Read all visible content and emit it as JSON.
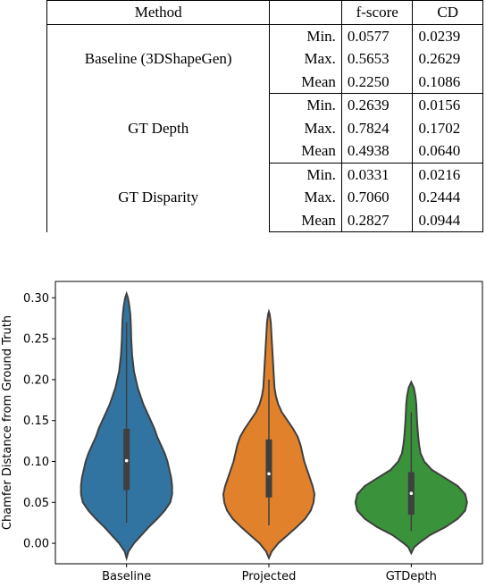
{
  "table": {
    "headers": [
      "Method",
      "",
      "f-score",
      "CD"
    ],
    "groups": [
      {
        "method": "Baseline (3DShapeGen)",
        "rows": [
          {
            "stat": "Min.",
            "fscore": "0.0577",
            "cd": "0.0239"
          },
          {
            "stat": "Max.",
            "fscore": "0.5653",
            "cd": "0.2629"
          },
          {
            "stat": "Mean",
            "fscore": "0.2250",
            "cd": "0.1086"
          }
        ]
      },
      {
        "method": "GT Depth",
        "rows": [
          {
            "stat": "Min.",
            "fscore": "0.2639",
            "cd": "0.0156"
          },
          {
            "stat": "Max.",
            "fscore": "0.7824",
            "cd": "0.1702"
          },
          {
            "stat": "Mean",
            "fscore": "0.4938",
            "cd": "0.0640"
          }
        ]
      },
      {
        "method": "GT Disparity",
        "rows": [
          {
            "stat": "Min.",
            "fscore": "0.0331",
            "cd": "0.0216"
          },
          {
            "stat": "Max.",
            "fscore": "0.7060",
            "cd": "0.2444"
          },
          {
            "stat": "Mean",
            "fscore": "0.2827",
            "cd": "0.0944"
          }
        ]
      }
    ]
  },
  "chart_data": {
    "type": "violin",
    "ylabel": "Chamfer Distance from Ground Truth",
    "xlabel": "",
    "ylim": [
      -0.025,
      0.32
    ],
    "yticks": [
      "0.00",
      "0.05",
      "0.10",
      "0.15",
      "0.20",
      "0.25",
      "0.30"
    ],
    "yticks_values": [
      0.0,
      0.05,
      0.1,
      0.15,
      0.2,
      0.25,
      0.3
    ],
    "grid": false,
    "categories": [
      "Baseline",
      "Projected",
      "GTDepth"
    ],
    "series": [
      {
        "color": "#3274a1",
        "range": [
          -0.018,
          0.305
        ],
        "whisker": [
          0.025,
          0.27
        ],
        "quartiles": [
          0.065,
          0.14
        ],
        "median": 0.101,
        "density": [
          [
            -0.018,
            0.0
          ],
          [
            -0.01,
            0.02
          ],
          [
            0.0,
            0.08
          ],
          [
            0.01,
            0.16
          ],
          [
            0.02,
            0.24
          ],
          [
            0.03,
            0.33
          ],
          [
            0.04,
            0.41
          ],
          [
            0.05,
            0.47
          ],
          [
            0.06,
            0.49
          ],
          [
            0.07,
            0.49
          ],
          [
            0.08,
            0.48
          ],
          [
            0.09,
            0.46
          ],
          [
            0.1,
            0.44
          ],
          [
            0.11,
            0.41
          ],
          [
            0.12,
            0.37
          ],
          [
            0.13,
            0.33
          ],
          [
            0.14,
            0.3
          ],
          [
            0.15,
            0.26
          ],
          [
            0.16,
            0.22
          ],
          [
            0.17,
            0.18
          ],
          [
            0.18,
            0.15
          ],
          [
            0.19,
            0.12
          ],
          [
            0.2,
            0.1
          ],
          [
            0.21,
            0.08
          ],
          [
            0.22,
            0.07
          ],
          [
            0.23,
            0.06
          ],
          [
            0.24,
            0.055
          ],
          [
            0.25,
            0.05
          ],
          [
            0.26,
            0.048
          ],
          [
            0.27,
            0.045
          ],
          [
            0.28,
            0.04
          ],
          [
            0.29,
            0.03
          ],
          [
            0.3,
            0.015
          ],
          [
            0.305,
            0.0
          ]
        ]
      },
      {
        "color": "#e1812c",
        "range": [
          -0.018,
          0.283
        ],
        "whisker": [
          0.022,
          0.2
        ],
        "quartiles": [
          0.056,
          0.127
        ],
        "median": 0.085,
        "density": [
          [
            -0.018,
            0.0
          ],
          [
            -0.01,
            0.03
          ],
          [
            0.0,
            0.1
          ],
          [
            0.01,
            0.2
          ],
          [
            0.02,
            0.3
          ],
          [
            0.03,
            0.39
          ],
          [
            0.04,
            0.45
          ],
          [
            0.05,
            0.48
          ],
          [
            0.06,
            0.49
          ],
          [
            0.07,
            0.47
          ],
          [
            0.08,
            0.44
          ],
          [
            0.09,
            0.41
          ],
          [
            0.1,
            0.38
          ],
          [
            0.11,
            0.36
          ],
          [
            0.12,
            0.34
          ],
          [
            0.13,
            0.31
          ],
          [
            0.14,
            0.26
          ],
          [
            0.15,
            0.2
          ],
          [
            0.16,
            0.14
          ],
          [
            0.17,
            0.1
          ],
          [
            0.18,
            0.075
          ],
          [
            0.19,
            0.06
          ],
          [
            0.2,
            0.055
          ],
          [
            0.21,
            0.05
          ],
          [
            0.22,
            0.045
          ],
          [
            0.23,
            0.04
          ],
          [
            0.24,
            0.035
          ],
          [
            0.25,
            0.03
          ],
          [
            0.26,
            0.025
          ],
          [
            0.27,
            0.02
          ],
          [
            0.28,
            0.008
          ],
          [
            0.283,
            0.0
          ]
        ]
      },
      {
        "color": "#3a923a",
        "range": [
          -0.012,
          0.197
        ],
        "whisker": [
          0.015,
          0.16
        ],
        "quartiles": [
          0.035,
          0.087
        ],
        "median": 0.061,
        "density": [
          [
            -0.012,
            0.0
          ],
          [
            -0.005,
            0.03
          ],
          [
            0.0,
            0.08
          ],
          [
            0.01,
            0.2
          ],
          [
            0.02,
            0.37
          ],
          [
            0.03,
            0.5
          ],
          [
            0.04,
            0.58
          ],
          [
            0.05,
            0.6
          ],
          [
            0.06,
            0.58
          ],
          [
            0.07,
            0.5
          ],
          [
            0.08,
            0.36
          ],
          [
            0.09,
            0.22
          ],
          [
            0.1,
            0.14
          ],
          [
            0.11,
            0.1
          ],
          [
            0.12,
            0.085
          ],
          [
            0.13,
            0.075
          ],
          [
            0.14,
            0.068
          ],
          [
            0.15,
            0.062
          ],
          [
            0.16,
            0.058
          ],
          [
            0.17,
            0.054
          ],
          [
            0.18,
            0.045
          ],
          [
            0.19,
            0.028
          ],
          [
            0.197,
            0.0
          ]
        ]
      }
    ]
  }
}
